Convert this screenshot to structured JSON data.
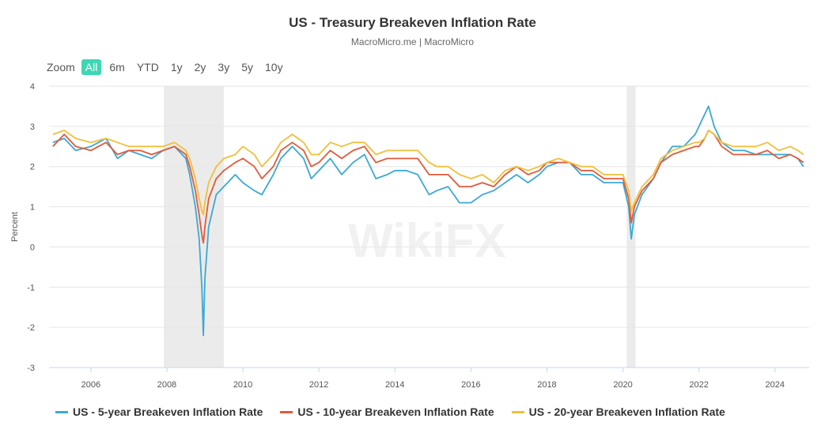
{
  "header": {
    "title": "US - Treasury Breakeven Inflation Rate",
    "subtitle": "MacroMicro.me | MacroMicro"
  },
  "zoom": {
    "label": "Zoom",
    "options": [
      "All",
      "6m",
      "YTD",
      "1y",
      "2y",
      "3y",
      "5y",
      "10y"
    ],
    "active": "All"
  },
  "watermark": "WikiFX",
  "colors": {
    "s5": "#3ba9d3",
    "s10": "#e15a3b",
    "s20": "#f0c03a",
    "accent": "#3fd6b3"
  },
  "chart_data": {
    "type": "line",
    "title": "US - Treasury Breakeven Inflation Rate",
    "ylabel": "Percent",
    "xlabel": "",
    "ylim": [
      -3,
      4
    ],
    "xlim": [
      2004.9,
      2024.9
    ],
    "yticks": [
      -3,
      -2,
      -1,
      0,
      1,
      2,
      3,
      4
    ],
    "xticks": [
      2006,
      2008,
      2010,
      2012,
      2014,
      2016,
      2018,
      2020,
      2022,
      2024
    ],
    "shaded_ranges": [
      [
        2007.92,
        2009.5
      ],
      [
        2020.1,
        2020.33
      ]
    ],
    "series": [
      {
        "name": "US - 5-year Breakeven Inflation Rate",
        "key": "s5",
        "x": [
          2005.0,
          2005.3,
          2005.6,
          2006.0,
          2006.4,
          2006.7,
          2007.0,
          2007.3,
          2007.6,
          2007.9,
          2008.2,
          2008.5,
          2008.6,
          2008.75,
          2008.85,
          2008.92,
          2008.96,
          2009.0,
          2009.1,
          2009.3,
          2009.5,
          2009.8,
          2010.0,
          2010.3,
          2010.5,
          2010.8,
          2011.0,
          2011.3,
          2011.6,
          2011.8,
          2012.0,
          2012.3,
          2012.6,
          2012.9,
          2013.2,
          2013.5,
          2013.8,
          2014.0,
          2014.3,
          2014.6,
          2014.9,
          2015.1,
          2015.4,
          2015.7,
          2016.0,
          2016.3,
          2016.6,
          2016.9,
          2017.2,
          2017.5,
          2017.8,
          2018.0,
          2018.3,
          2018.6,
          2018.9,
          2019.2,
          2019.5,
          2019.8,
          2020.0,
          2020.15,
          2020.22,
          2020.3,
          2020.5,
          2020.8,
          2021.0,
          2021.3,
          2021.6,
          2021.9,
          2022.0,
          2022.15,
          2022.25,
          2022.4,
          2022.6,
          2022.9,
          2023.2,
          2023.5,
          2023.8,
          2024.1,
          2024.4,
          2024.6,
          2024.75
        ],
        "values": [
          2.6,
          2.7,
          2.4,
          2.5,
          2.7,
          2.2,
          2.4,
          2.3,
          2.2,
          2.4,
          2.5,
          2.2,
          1.8,
          1.0,
          0.2,
          -1.0,
          -2.2,
          -0.8,
          0.5,
          1.3,
          1.5,
          1.8,
          1.6,
          1.4,
          1.3,
          1.8,
          2.2,
          2.5,
          2.2,
          1.7,
          1.9,
          2.2,
          1.8,
          2.1,
          2.3,
          1.7,
          1.8,
          1.9,
          1.9,
          1.8,
          1.3,
          1.4,
          1.5,
          1.1,
          1.1,
          1.3,
          1.4,
          1.6,
          1.8,
          1.6,
          1.8,
          2.0,
          2.1,
          2.1,
          1.8,
          1.8,
          1.6,
          1.6,
          1.6,
          1.0,
          0.2,
          0.8,
          1.3,
          1.7,
          2.1,
          2.5,
          2.5,
          2.8,
          3.0,
          3.3,
          3.5,
          3.0,
          2.6,
          2.4,
          2.4,
          2.3,
          2.3,
          2.3,
          2.3,
          2.2,
          2.0
        ]
      },
      {
        "name": "US - 10-year Breakeven Inflation Rate",
        "key": "s10",
        "x": [
          2005.0,
          2005.3,
          2005.6,
          2006.0,
          2006.4,
          2006.7,
          2007.0,
          2007.3,
          2007.6,
          2007.9,
          2008.2,
          2008.5,
          2008.6,
          2008.75,
          2008.85,
          2008.92,
          2008.96,
          2009.0,
          2009.1,
          2009.3,
          2009.5,
          2009.8,
          2010.0,
          2010.3,
          2010.5,
          2010.8,
          2011.0,
          2011.3,
          2011.6,
          2011.8,
          2012.0,
          2012.3,
          2012.6,
          2012.9,
          2013.2,
          2013.5,
          2013.8,
          2014.0,
          2014.3,
          2014.6,
          2014.9,
          2015.1,
          2015.4,
          2015.7,
          2016.0,
          2016.3,
          2016.6,
          2016.9,
          2017.2,
          2017.5,
          2017.8,
          2018.0,
          2018.3,
          2018.6,
          2018.9,
          2019.2,
          2019.5,
          2019.8,
          2020.0,
          2020.15,
          2020.22,
          2020.3,
          2020.5,
          2020.8,
          2021.0,
          2021.3,
          2021.6,
          2021.9,
          2022.0,
          2022.15,
          2022.25,
          2022.4,
          2022.6,
          2022.9,
          2023.2,
          2023.5,
          2023.8,
          2024.1,
          2024.4,
          2024.6,
          2024.75
        ],
        "values": [
          2.5,
          2.8,
          2.5,
          2.4,
          2.6,
          2.3,
          2.4,
          2.4,
          2.3,
          2.4,
          2.5,
          2.3,
          2.0,
          1.4,
          0.8,
          0.3,
          0.1,
          0.5,
          1.2,
          1.7,
          1.9,
          2.1,
          2.2,
          2.0,
          1.7,
          2.0,
          2.4,
          2.6,
          2.4,
          2.0,
          2.1,
          2.4,
          2.2,
          2.4,
          2.5,
          2.1,
          2.2,
          2.2,
          2.2,
          2.2,
          1.8,
          1.8,
          1.8,
          1.5,
          1.5,
          1.6,
          1.5,
          1.8,
          2.0,
          1.8,
          1.9,
          2.1,
          2.1,
          2.1,
          1.9,
          1.9,
          1.7,
          1.7,
          1.7,
          1.2,
          0.6,
          1.0,
          1.4,
          1.7,
          2.1,
          2.3,
          2.4,
          2.5,
          2.5,
          2.7,
          2.9,
          2.8,
          2.5,
          2.3,
          2.3,
          2.3,
          2.4,
          2.2,
          2.3,
          2.2,
          2.1
        ]
      },
      {
        "name": "US - 20-year Breakeven Inflation Rate",
        "key": "s20",
        "x": [
          2005.0,
          2005.3,
          2005.6,
          2006.0,
          2006.4,
          2006.7,
          2007.0,
          2007.3,
          2007.6,
          2007.9,
          2008.2,
          2008.5,
          2008.6,
          2008.75,
          2008.85,
          2008.92,
          2008.96,
          2009.0,
          2009.1,
          2009.3,
          2009.5,
          2009.8,
          2010.0,
          2010.3,
          2010.5,
          2010.8,
          2011.0,
          2011.3,
          2011.6,
          2011.8,
          2012.0,
          2012.3,
          2012.6,
          2012.9,
          2013.2,
          2013.5,
          2013.8,
          2014.0,
          2014.3,
          2014.6,
          2014.9,
          2015.1,
          2015.4,
          2015.7,
          2016.0,
          2016.3,
          2016.6,
          2016.9,
          2017.2,
          2017.5,
          2017.8,
          2018.0,
          2018.3,
          2018.6,
          2018.9,
          2019.2,
          2019.5,
          2019.8,
          2020.0,
          2020.15,
          2020.22,
          2020.3,
          2020.5,
          2020.8,
          2021.0,
          2021.3,
          2021.6,
          2021.9,
          2022.0,
          2022.15,
          2022.25,
          2022.4,
          2022.6,
          2022.9,
          2023.2,
          2023.5,
          2023.8,
          2024.1,
          2024.4,
          2024.6,
          2024.75
        ],
        "values": [
          2.8,
          2.9,
          2.7,
          2.6,
          2.7,
          2.6,
          2.5,
          2.5,
          2.5,
          2.5,
          2.6,
          2.4,
          2.2,
          1.7,
          1.2,
          0.9,
          0.8,
          1.1,
          1.6,
          2.0,
          2.2,
          2.3,
          2.5,
          2.3,
          2.0,
          2.3,
          2.6,
          2.8,
          2.6,
          2.3,
          2.3,
          2.6,
          2.5,
          2.6,
          2.6,
          2.3,
          2.4,
          2.4,
          2.4,
          2.4,
          2.1,
          2.0,
          2.0,
          1.8,
          1.7,
          1.8,
          1.6,
          1.9,
          2.0,
          1.9,
          2.0,
          2.1,
          2.2,
          2.1,
          2.0,
          2.0,
          1.8,
          1.8,
          1.8,
          1.4,
          0.9,
          1.1,
          1.5,
          1.8,
          2.2,
          2.4,
          2.5,
          2.6,
          2.6,
          2.7,
          2.9,
          2.8,
          2.6,
          2.5,
          2.5,
          2.5,
          2.6,
          2.4,
          2.5,
          2.4,
          2.3
        ]
      }
    ]
  }
}
